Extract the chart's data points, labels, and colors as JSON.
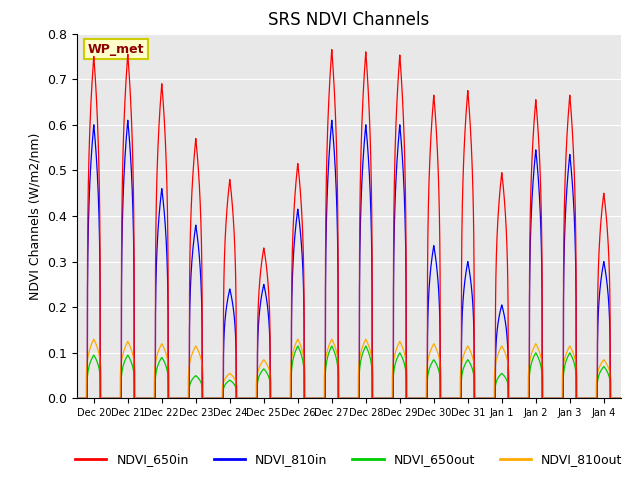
{
  "title": "SRS NDVI Channels",
  "ylabel": "NDVI Channels (W/m2/nm)",
  "annotation": "WP_met",
  "ylim": [
    0.0,
    0.8
  ],
  "background_color": "#e8e8e8",
  "legend_labels": [
    "NDVI_650in",
    "NDVI_810in",
    "NDVI_650out",
    "NDVI_810out"
  ],
  "legend_colors": [
    "#ff0000",
    "#0000ff",
    "#00cc00",
    "#ffaa00"
  ],
  "tick_labels": [
    "Dec 20",
    "Dec 21",
    "Dec 22",
    "Dec 23",
    "Dec 24",
    "Dec 25",
    "Dec 26",
    "Dec 27",
    "Dec 28",
    "Dec 29",
    "Dec 30",
    "Dec 31",
    "Jan 1",
    "Jan 2",
    "Jan 3",
    "Jan 4"
  ],
  "day_peaks_650in": [
    0.75,
    0.755,
    0.69,
    0.57,
    0.48,
    0.33,
    0.515,
    0.765,
    0.76,
    0.753,
    0.665,
    0.675,
    0.495,
    0.655,
    0.665,
    0.45
  ],
  "day_peaks_810in": [
    0.6,
    0.61,
    0.46,
    0.38,
    0.24,
    0.25,
    0.415,
    0.61,
    0.6,
    0.6,
    0.335,
    0.3,
    0.205,
    0.545,
    0.535,
    0.3
  ],
  "day_peaks_650out": [
    0.095,
    0.095,
    0.09,
    0.05,
    0.04,
    0.065,
    0.115,
    0.115,
    0.115,
    0.1,
    0.085,
    0.085,
    0.055,
    0.1,
    0.1,
    0.07
  ],
  "day_peaks_810out": [
    0.13,
    0.125,
    0.12,
    0.115,
    0.055,
    0.085,
    0.13,
    0.13,
    0.13,
    0.125,
    0.12,
    0.115,
    0.115,
    0.12,
    0.115,
    0.085
  ],
  "color_650in": "#ff0000",
  "color_810in": "#0000ff",
  "color_650out": "#00cc00",
  "color_810out": "#ffaa00",
  "n_days": 16,
  "pts_per_day": 200,
  "title_fontsize": 12,
  "label_fontsize": 9,
  "yticks": [
    0.0,
    0.1,
    0.2,
    0.3,
    0.4,
    0.5,
    0.6,
    0.7,
    0.8
  ]
}
